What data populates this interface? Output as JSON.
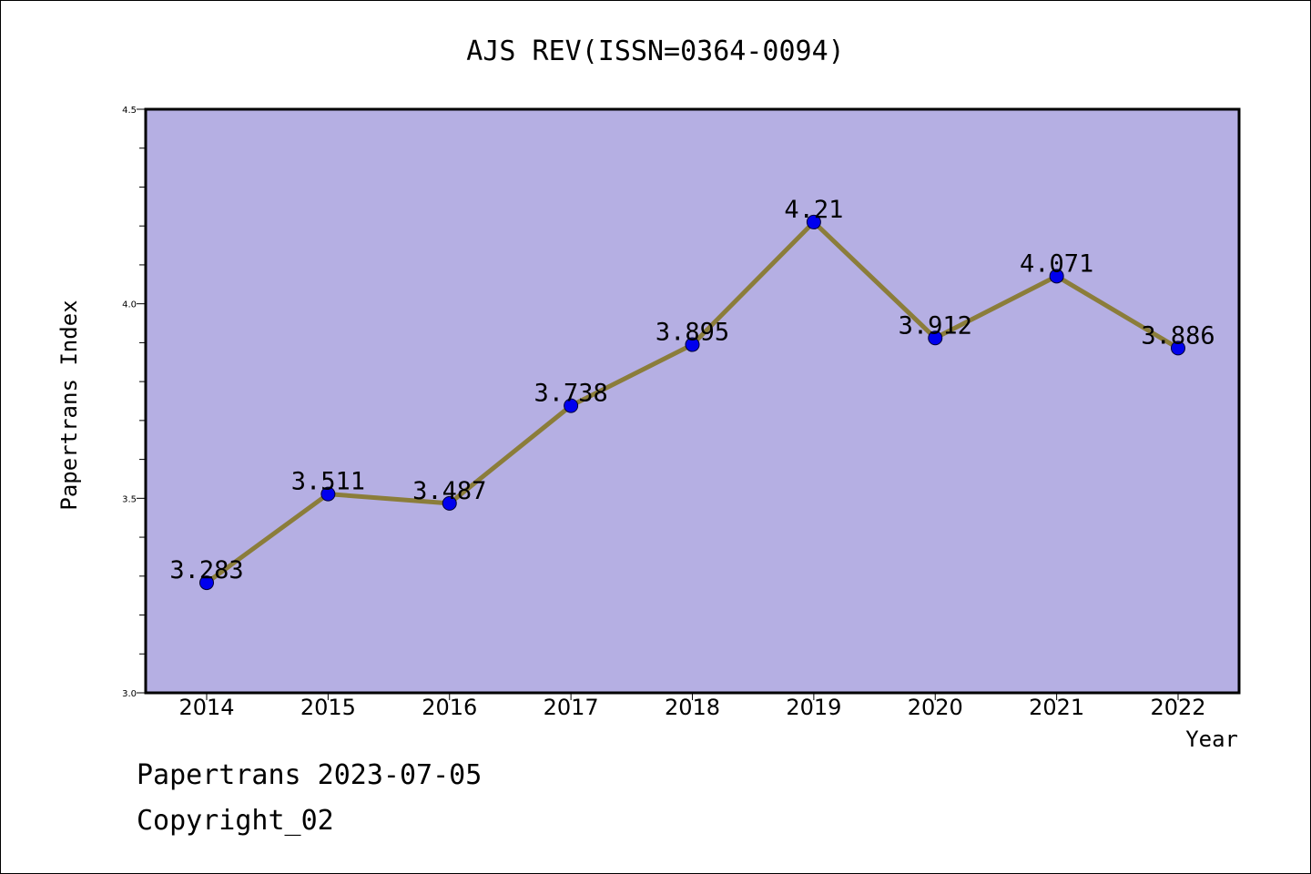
{
  "chart_data": {
    "type": "line",
    "title": "AJS REV(ISSN=0364-0094)",
    "xlabel": "Year",
    "ylabel": "Papertrans Index",
    "categories": [
      "2014",
      "2015",
      "2016",
      "2017",
      "2018",
      "2019",
      "2020",
      "2021",
      "2022"
    ],
    "values": [
      3.283,
      3.511,
      3.487,
      3.738,
      3.895,
      4.21,
      3.912,
      4.071,
      3.886
    ],
    "value_labels": [
      "3.283",
      "3.511",
      "3.487",
      "3.738",
      "3.895",
      "4.21",
      "3.912",
      "4.071",
      "3.886"
    ],
    "ylim": [
      3.0,
      4.5
    ],
    "yticks": [
      "3.0",
      "3.5",
      "4.0",
      "4.5"
    ],
    "grid": false,
    "colors": {
      "plot_background": "#b5afe3",
      "line": "#8b7d3a",
      "marker": "#0000ee"
    }
  },
  "footer": {
    "line1": "Papertrans 2023-07-05",
    "line2": "Copyright_02"
  }
}
